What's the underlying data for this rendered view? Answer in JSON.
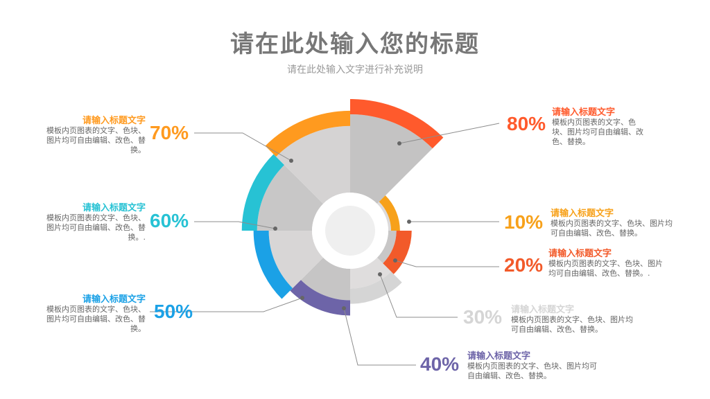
{
  "title": "请在此处输入您的标题",
  "subtitle": "请在此处输入文字进行补充说明",
  "chart_data": {
    "type": "pie",
    "variant": "radial-sector",
    "inner_hole": true,
    "legend_placement": "around",
    "series": [
      {
        "label": "80%",
        "value": 80,
        "color": "#FF5A2C",
        "title": "请输入标题文字",
        "desc": "模板内页图表的文字、色块、图片均可自由编辑、改色、替换。"
      },
      {
        "label": "10%",
        "value": 10,
        "color": "#F7A11A",
        "title": "请输入标题文字",
        "desc": "模板内页图表的文字、色块、图片均可自由编辑、改色、替换。"
      },
      {
        "label": "20%",
        "value": 20,
        "color": "#F25A2A",
        "title": "请输入标题文字",
        "desc": "模板内页图表的文字、色块、图片均可自由编辑、改色、替换。."
      },
      {
        "label": "30%",
        "value": 30,
        "color": "#D5D5D5",
        "title": "请输入标题文字",
        "desc": "模板内页图表的文字、色块、图片均可自由编辑、改色、替换。"
      },
      {
        "label": "40%",
        "value": 40,
        "color": "#6D64A8",
        "title": "请输入标题文字",
        "desc": "模板内页图表的文字、色块、图片均可自由编辑、改色、替换。"
      },
      {
        "label": "50%",
        "value": 50,
        "color": "#1BA1E6",
        "title": "请输入标题文字",
        "desc": "模板内页图表的文字、色块、图片均可自由编辑、改色、替换。"
      },
      {
        "label": "60%",
        "value": 60,
        "color": "#27C2D4",
        "title": "请输入标题文字",
        "desc": "模板内页图表的文字、色块、图片均可自由编辑、改色、替换。."
      },
      {
        "label": "70%",
        "value": 70,
        "color": "#FF9A1F",
        "title": "请输入标题文字",
        "desc": "模板内页图表的文字、色块、图片均可自由编辑、改色、替换。"
      }
    ]
  }
}
